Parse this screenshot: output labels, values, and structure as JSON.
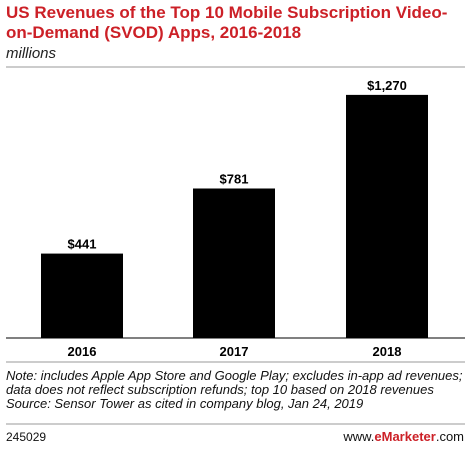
{
  "header": {
    "title": "US Revenues of the Top 10 Mobile Subscription Video-on-Demand (SVOD) Apps, 2016-2018",
    "subtitle": "millions"
  },
  "chart_data": {
    "type": "bar",
    "categories": [
      "2016",
      "2017",
      "2018"
    ],
    "values": [
      441,
      781,
      1270
    ],
    "value_labels": [
      "$441",
      "$781",
      "$1,270"
    ],
    "title": "US Revenues of the Top 10 Mobile Subscription Video-on-Demand (SVOD) Apps, 2016-2018",
    "ylabel": "millions",
    "ylim": [
      0,
      1400
    ],
    "bar_color": "#000000"
  },
  "footer": {
    "note": "Note: includes Apple App Store and Google Play; excludes in-app ad revenues; data does not reflect subscription refunds; top 10 based on 2018 revenues",
    "source": "Source: Sensor Tower as cited in company blog, Jan 24, 2019",
    "chart_id": "245029",
    "brand_prefix": "www.",
    "brand_name": "eMarketer",
    "brand_suffix": ".com"
  },
  "colors": {
    "title": "#cc2027",
    "brand": "#cc2027",
    "rule": "#999999"
  }
}
